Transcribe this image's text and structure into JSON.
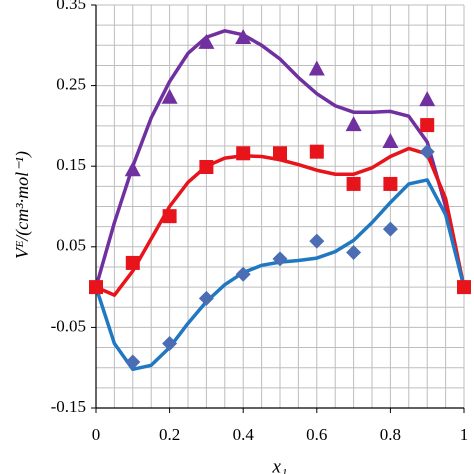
{
  "chart_data": {
    "type": "scatter",
    "x_label": "x₁",
    "y_label": "Vᴱ/(cm³·mol⁻¹)",
    "xlim": [
      0,
      1
    ],
    "xticks": [
      0,
      0.2,
      0.4,
      0.6,
      0.8,
      1
    ],
    "ylim": [
      -0.15,
      0.35
    ],
    "yticks": [
      -0.15,
      -0.05,
      0.05,
      0.15,
      0.25,
      0.35
    ],
    "grid": true,
    "minor_xgrid": [
      0.05,
      0.1,
      0.15,
      0.25,
      0.3,
      0.35,
      0.45,
      0.5,
      0.55,
      0.65,
      0.7,
      0.75,
      0.85,
      0.9,
      0.95
    ],
    "minor_ygrid": [
      -0.125,
      -0.1,
      -0.075,
      -0.025,
      0,
      0.025,
      0.075,
      0.1,
      0.125,
      0.175,
      0.2,
      0.225,
      0.275,
      0.3,
      0.325
    ],
    "series": [
      {
        "color": "#7030a0",
        "line": true,
        "x": [
          0,
          0.05,
          0.1,
          0.15,
          0.2,
          0.25,
          0.3,
          0.35,
          0.4,
          0.45,
          0.5,
          0.55,
          0.6,
          0.65,
          0.7,
          0.75,
          0.8,
          0.85,
          0.9,
          0.95,
          1
        ],
        "values": [
          0,
          0.08,
          0.15,
          0.21,
          0.255,
          0.29,
          0.31,
          0.318,
          0.313,
          0.3,
          0.283,
          0.26,
          0.24,
          0.225,
          0.217,
          0.217,
          0.218,
          0.212,
          0.18,
          0.1,
          0
        ]
      },
      {
        "color": "#e8141b",
        "line": true,
        "x": [
          0,
          0.05,
          0.1,
          0.15,
          0.2,
          0.25,
          0.3,
          0.35,
          0.4,
          0.45,
          0.5,
          0.55,
          0.6,
          0.65,
          0.7,
          0.75,
          0.8,
          0.85,
          0.9,
          0.95,
          1
        ],
        "values": [
          0,
          -0.01,
          0.02,
          0.06,
          0.1,
          0.13,
          0.15,
          0.16,
          0.163,
          0.162,
          0.158,
          0.152,
          0.145,
          0.14,
          0.14,
          0.148,
          0.162,
          0.172,
          0.165,
          0.11,
          0
        ]
      },
      {
        "color": "#1f78c1",
        "line": true,
        "x": [
          0,
          0.05,
          0.1,
          0.15,
          0.2,
          0.25,
          0.3,
          0.35,
          0.4,
          0.45,
          0.5,
          0.55,
          0.6,
          0.65,
          0.7,
          0.75,
          0.8,
          0.85,
          0.9,
          0.95,
          1
        ],
        "values": [
          0,
          -0.07,
          -0.102,
          -0.097,
          -0.075,
          -0.045,
          -0.018,
          0.003,
          0.018,
          0.027,
          0.031,
          0.033,
          0.036,
          0.044,
          0.058,
          0.08,
          0.105,
          0.128,
          0.133,
          0.09,
          0
        ]
      },
      {
        "color": "#7030a0",
        "marker": "triangle",
        "x": [
          0.1,
          0.2,
          0.3,
          0.4,
          0.6,
          0.7,
          0.8,
          0.9
        ],
        "values": [
          0.145,
          0.235,
          0.303,
          0.309,
          0.27,
          0.201,
          0.18,
          0.232
        ]
      },
      {
        "color": "#e8141b",
        "marker": "square",
        "x": [
          0,
          0.1,
          0.2,
          0.3,
          0.4,
          0.5,
          0.6,
          0.7,
          0.8,
          0.9,
          1
        ],
        "values": [
          0,
          0.03,
          0.088,
          0.149,
          0.166,
          0.166,
          0.168,
          0.128,
          0.128,
          0.201,
          0
        ]
      },
      {
        "color": "#4a6db3",
        "marker": "diamond",
        "x": [
          0.1,
          0.2,
          0.3,
          0.4,
          0.5,
          0.6,
          0.7,
          0.8,
          0.9
        ],
        "values": [
          -0.093,
          -0.07,
          -0.014,
          0.016,
          0.035,
          0.057,
          0.043,
          0.072,
          0.168
        ]
      }
    ]
  }
}
